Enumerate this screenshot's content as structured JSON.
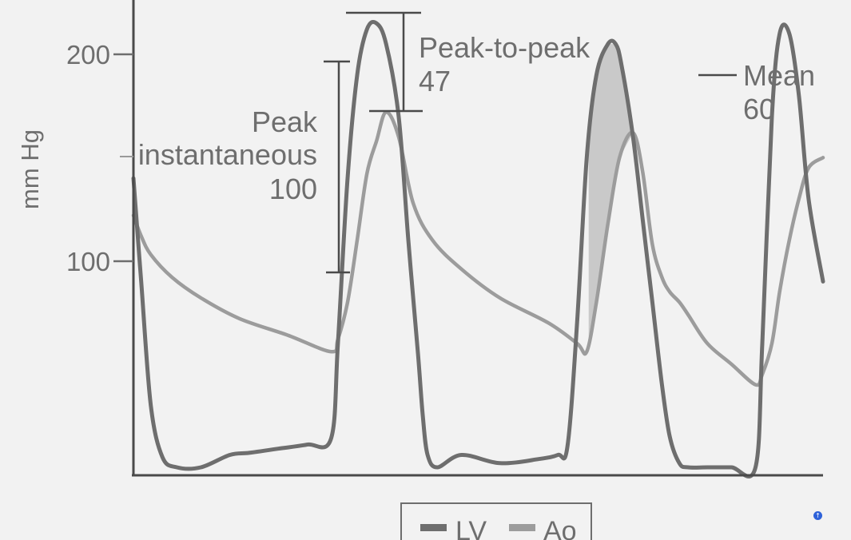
{
  "chart_data": {
    "type": "line",
    "title": "",
    "xlabel": "",
    "ylabel": "mm Hg",
    "ylim": [
      0,
      225
    ],
    "yticks": [
      {
        "value": 200,
        "label": "200"
      },
      {
        "value": 100,
        "label": "100"
      }
    ],
    "grid": false,
    "legend_position": "bottom-center",
    "series": [
      {
        "name": "LV",
        "color": "#6e6e6e",
        "x": [
          0,
          8,
          18,
          30,
          45,
          70,
          100,
          120,
          150,
          180,
          205,
          212,
          222,
          232,
          242,
          252,
          262,
          275,
          285,
          295,
          300,
          305,
          315,
          340,
          380,
          420,
          440,
          450,
          460,
          470,
          480,
          492,
          500,
          506,
          518,
          528,
          538,
          548,
          556,
          566,
          575,
          595,
          620,
          645,
          652,
          662,
          670,
          680,
          690,
          700,
          715
        ],
        "y": [
          140,
          90,
          30,
          5,
          0,
          0,
          6,
          7,
          9,
          11,
          14,
          60,
          140,
          190,
          212,
          215,
          205,
          170,
          110,
          55,
          25,
          6,
          0,
          6,
          2,
          4,
          6,
          10,
          70,
          150,
          190,
          205,
          205,
          195,
          160,
          120,
          80,
          40,
          15,
          2,
          0,
          0,
          0,
          0,
          60,
          170,
          210,
          210,
          180,
          130,
          90
        ]
      },
      {
        "name": "Ao",
        "color": "#9c9c9c",
        "x": [
          0,
          8,
          18,
          40,
          70,
          110,
          160,
          205,
          212,
          222,
          232,
          242,
          252,
          262,
          275,
          290,
          310,
          340,
          380,
          430,
          460,
          470,
          480,
          492,
          504,
          518,
          528,
          538,
          548,
          556,
          566,
          575,
          595,
          620,
          645,
          652,
          662,
          670,
          680,
          690,
          700,
          715
        ],
        "y": [
          122,
          112,
          103,
          92,
          82,
          72,
          64,
          56,
          62,
          80,
          110,
          142,
          158,
          172,
          160,
          128,
          110,
          96,
          82,
          70,
          60,
          56,
          80,
          118,
          150,
          162,
          143,
          108,
          92,
          85,
          80,
          74,
          60,
          50,
          40,
          45,
          60,
          85,
          110,
          130,
          145,
          150
        ]
      }
    ],
    "annotations": [
      {
        "id": "peak-to-peak",
        "lines": [
          "Peak-to-peak",
          "47"
        ]
      },
      {
        "id": "peak-instantaneous",
        "lines": [
          "Peak",
          "instantaneous",
          "100"
        ]
      },
      {
        "id": "mean",
        "lines": [
          "Mean",
          "60"
        ]
      }
    ]
  },
  "ui": {
    "scroll_top_icon": "arrow-up-icon",
    "scroll_top_glyph": "↑"
  }
}
